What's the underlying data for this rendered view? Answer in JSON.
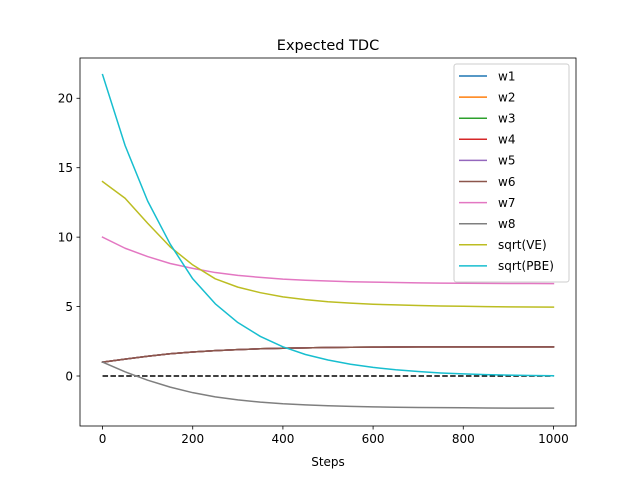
{
  "chart_data": {
    "type": "line",
    "title": "Expected TDC",
    "xlabel": "Steps",
    "ylabel": "",
    "xlim": [
      -50,
      1050
    ],
    "ylim": [
      -3.6,
      22.9
    ],
    "xticks": [
      0,
      200,
      400,
      600,
      800,
      1000
    ],
    "yticks": [
      0,
      5,
      10,
      15,
      20
    ],
    "grid": false,
    "legend_position": "upper right",
    "x": [
      0,
      50,
      100,
      150,
      200,
      250,
      300,
      350,
      400,
      450,
      500,
      550,
      600,
      650,
      700,
      750,
      800,
      850,
      900,
      950,
      1000
    ],
    "series": [
      {
        "name": "w1",
        "color": "#1f77b4",
        "values": [
          1.0,
          1.22,
          1.42,
          1.6,
          1.73,
          1.83,
          1.9,
          1.96,
          2.0,
          2.03,
          2.05,
          2.07,
          2.08,
          2.09,
          2.1,
          2.1,
          2.1,
          2.1,
          2.1,
          2.1,
          2.1
        ]
      },
      {
        "name": "w2",
        "color": "#ff7f0e",
        "values": [
          1.0,
          1.22,
          1.42,
          1.6,
          1.73,
          1.83,
          1.9,
          1.96,
          2.0,
          2.03,
          2.05,
          2.07,
          2.08,
          2.09,
          2.1,
          2.1,
          2.1,
          2.1,
          2.1,
          2.1,
          2.1
        ]
      },
      {
        "name": "w3",
        "color": "#2ca02c",
        "values": [
          1.0,
          1.22,
          1.42,
          1.6,
          1.73,
          1.83,
          1.9,
          1.96,
          2.0,
          2.03,
          2.05,
          2.07,
          2.08,
          2.09,
          2.1,
          2.1,
          2.1,
          2.1,
          2.1,
          2.1,
          2.1
        ]
      },
      {
        "name": "w4",
        "color": "#d62728",
        "values": [
          1.0,
          1.22,
          1.42,
          1.6,
          1.73,
          1.83,
          1.9,
          1.96,
          2.0,
          2.03,
          2.05,
          2.07,
          2.08,
          2.09,
          2.1,
          2.1,
          2.1,
          2.1,
          2.1,
          2.1,
          2.1
        ]
      },
      {
        "name": "w5",
        "color": "#9467bd",
        "values": [
          1.0,
          1.22,
          1.42,
          1.6,
          1.73,
          1.83,
          1.9,
          1.96,
          2.0,
          2.03,
          2.05,
          2.07,
          2.08,
          2.09,
          2.1,
          2.1,
          2.1,
          2.1,
          2.1,
          2.1,
          2.1
        ]
      },
      {
        "name": "w6",
        "color": "#8c564b",
        "values": [
          1.0,
          1.22,
          1.42,
          1.6,
          1.73,
          1.83,
          1.9,
          1.96,
          2.0,
          2.03,
          2.05,
          2.07,
          2.08,
          2.09,
          2.1,
          2.1,
          2.1,
          2.1,
          2.1,
          2.1,
          2.1
        ]
      },
      {
        "name": "w7",
        "color": "#e377c2",
        "values": [
          10.0,
          9.2,
          8.6,
          8.1,
          7.75,
          7.45,
          7.25,
          7.1,
          6.98,
          6.9,
          6.84,
          6.79,
          6.76,
          6.73,
          6.71,
          6.69,
          6.68,
          6.67,
          6.66,
          6.66,
          6.65
        ]
      },
      {
        "name": "w8",
        "color": "#7f7f7f",
        "values": [
          1.0,
          0.3,
          -0.3,
          -0.8,
          -1.2,
          -1.5,
          -1.72,
          -1.88,
          -2.0,
          -2.08,
          -2.14,
          -2.19,
          -2.22,
          -2.25,
          -2.27,
          -2.28,
          -2.29,
          -2.3,
          -2.31,
          -2.31,
          -2.31
        ]
      },
      {
        "name": "sqrt(VE)",
        "color": "#bcbd22",
        "values": [
          14.0,
          12.8,
          11.0,
          9.3,
          8.0,
          7.0,
          6.4,
          6.0,
          5.7,
          5.5,
          5.35,
          5.25,
          5.17,
          5.12,
          5.08,
          5.04,
          5.02,
          5.0,
          4.98,
          4.97,
          4.96
        ]
      },
      {
        "name": "sqrt(PBE)",
        "color": "#17becf",
        "values": [
          21.7,
          16.6,
          12.6,
          9.5,
          7.0,
          5.2,
          3.85,
          2.85,
          2.1,
          1.55,
          1.15,
          0.85,
          0.62,
          0.45,
          0.32,
          0.22,
          0.15,
          0.1,
          0.06,
          0.04,
          0.02
        ]
      }
    ],
    "reference_line": {
      "y": 0,
      "x_range": [
        0,
        1000
      ],
      "color": "#000000",
      "style": "dashed"
    }
  }
}
